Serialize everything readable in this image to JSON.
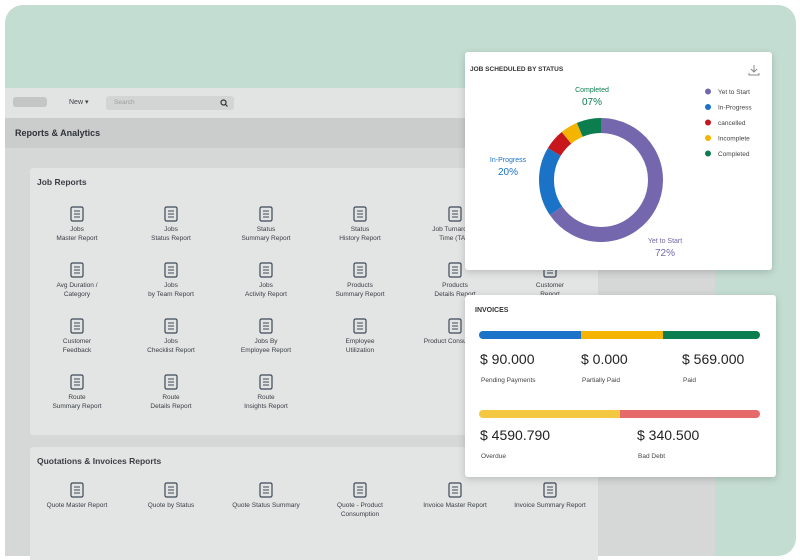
{
  "topbar": {
    "menu": "New",
    "search": "Search"
  },
  "page_title": "Reports & Analytics",
  "sections": [
    {
      "title": "Job Reports",
      "items": [
        [
          "Jobs",
          "Master Report"
        ],
        [
          "Jobs",
          "Status Report"
        ],
        [
          "Status",
          "Summary Report"
        ],
        [
          "Status",
          "History Report"
        ],
        [
          "Job Turnaround",
          "Time (TAT)"
        ],
        null,
        [
          "Avg Duration /",
          "Category"
        ],
        [
          "Jobs",
          "by Team Report"
        ],
        [
          "Jobs",
          "Activity Report"
        ],
        [
          "Products",
          "Summary Report"
        ],
        [
          "Products",
          "Details Report"
        ],
        [
          "Customer",
          "Report"
        ],
        [
          "Customer",
          "Feedback"
        ],
        [
          "Jobs",
          "Checklist Report"
        ],
        [
          "Jobs By",
          "Employee Report"
        ],
        [
          "Employee",
          "Utilization"
        ],
        [
          "Product Consumption"
        ],
        null,
        [
          "Route",
          "Summary Report"
        ],
        [
          "Route",
          "Details Report"
        ],
        [
          "Route",
          "Insights Report"
        ]
      ]
    },
    {
      "title": "Quotations & Invoices Reports",
      "items": [
        [
          "Quote Master Report"
        ],
        [
          "Quote by Status"
        ],
        [
          "Quote Status Summary"
        ],
        [
          "Quote - Product",
          "Consumption"
        ],
        [
          "Invoice Master Report"
        ],
        [
          "Invoice Summary Report"
        ]
      ]
    }
  ],
  "chart_data": {
    "type": "pie",
    "title": "JOB SCHEDULED BY STATUS",
    "categories": [
      "Yet to Start",
      "In-Progress",
      "cancelled",
      "Incomplete",
      "Completed"
    ],
    "values": [
      72,
      20,
      6,
      5,
      7
    ],
    "value_labels": [
      "72%",
      "20%",
      null,
      null,
      "07%"
    ],
    "colors": [
      "#7467ad",
      "#1a73c6",
      "#c8161d",
      "#f4b400",
      "#0b7d4f"
    ],
    "donut": true
  },
  "invoices": {
    "title": "INVOICES",
    "items": [
      {
        "amount": "$ 90.000",
        "label": "Pending Payments"
      },
      {
        "amount": "$ 0.000",
        "label": "Partially Paid"
      },
      {
        "amount": "$ 569.000",
        "label": "Paid"
      },
      {
        "amount": "$ 4590.790",
        "label": "Overdue"
      },
      {
        "amount": "$ 340.500",
        "label": "Bad Debt"
      }
    ]
  }
}
